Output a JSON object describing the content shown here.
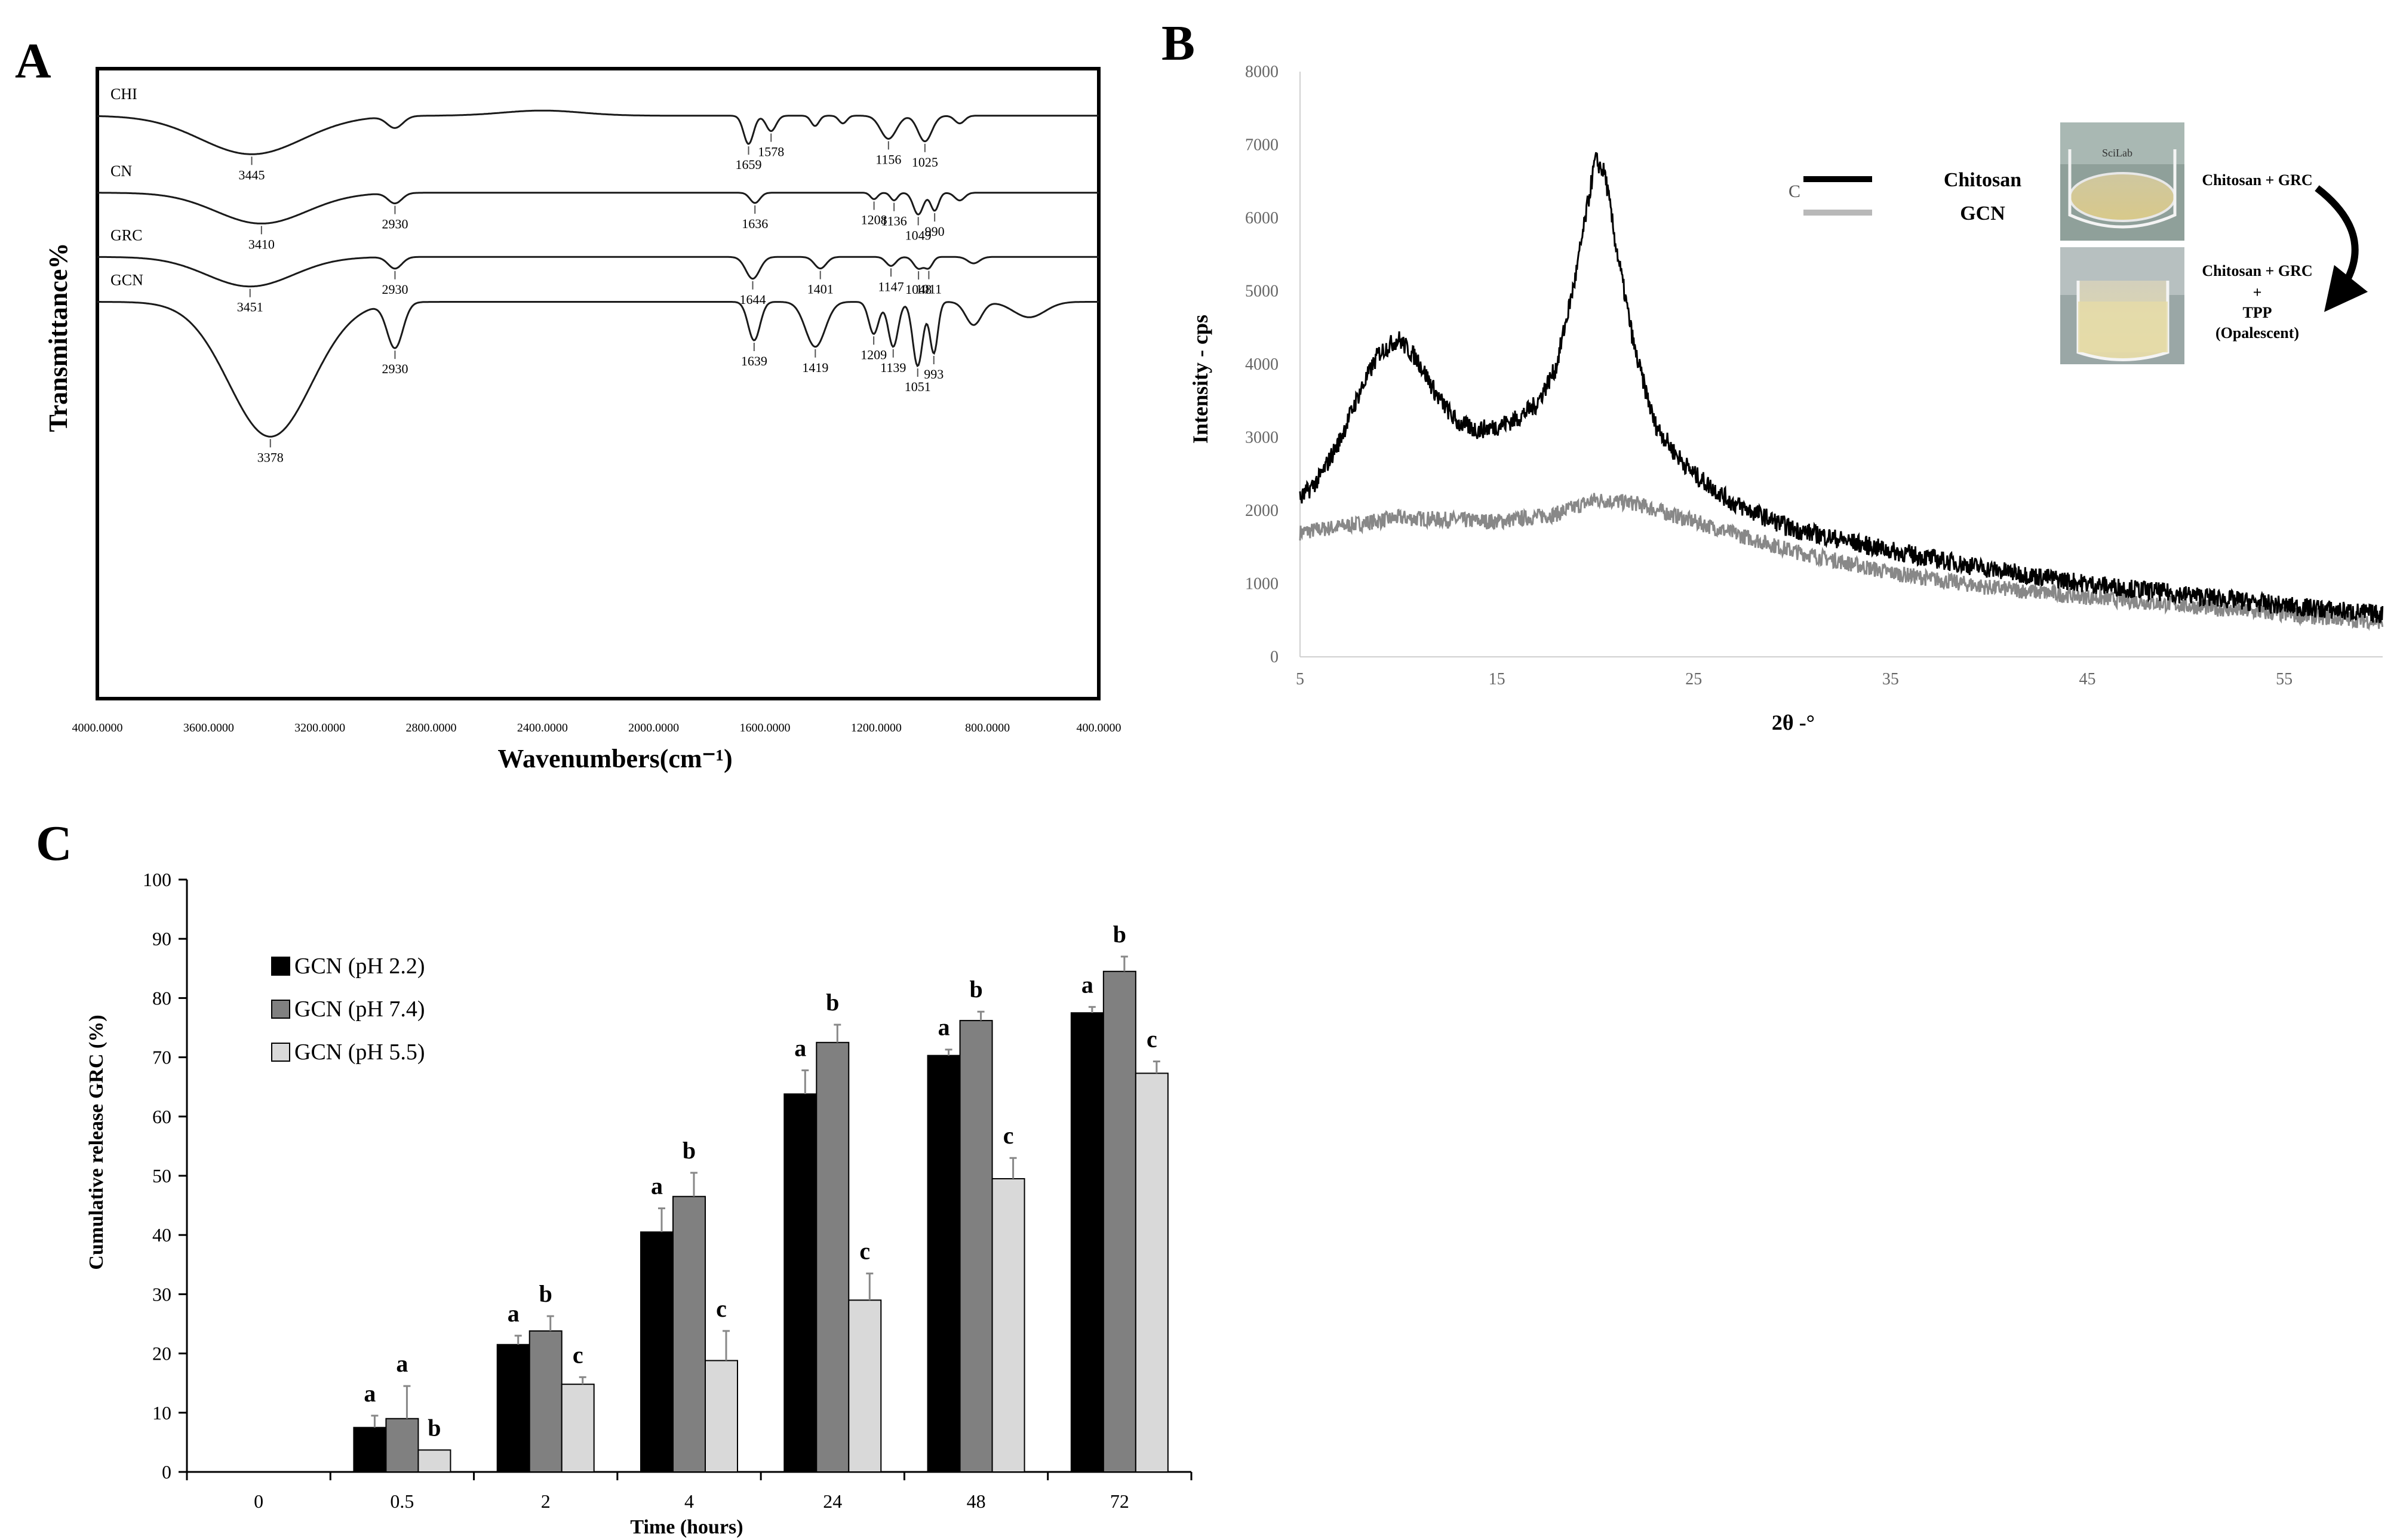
{
  "panels": {
    "A": "A",
    "B": "B",
    "C": "C"
  },
  "chart_data": [
    {
      "panel": "A",
      "type": "line",
      "title": "",
      "xlabel": "Wavenumbers(cm⁻¹)",
      "ylabel": "Transmittance%",
      "xlim": [
        4000,
        400
      ],
      "x_ticks": [
        4000,
        3600,
        3200,
        2800,
        2400,
        2000,
        1600,
        1200,
        800,
        400
      ],
      "x_tick_labels": [
        "4000.0000",
        "3600.0000",
        "3200.0000",
        "2800.0000",
        "2400.0000",
        "2000.0000",
        "1600.0000",
        "1200.0000",
        "800.0000",
        "400.0000"
      ],
      "series": [
        {
          "name": "CHI",
          "baseline": 2.5,
          "dips": [
            [
              3445,
              3.0,
              260
            ],
            [
              2930,
              0.9,
              40
            ],
            [
              2400,
              -0.4,
              200
            ],
            [
              1659,
              2.2,
              25
            ],
            [
              1578,
              1.2,
              25
            ],
            [
              1420,
              0.8,
              20
            ],
            [
              1320,
              0.6,
              20
            ],
            [
              1156,
              1.8,
              40
            ],
            [
              1025,
              2.0,
              35
            ],
            [
              900,
              0.6,
              25
            ]
          ],
          "peaks": [
            {
              "x": 3445,
              "label": "3445"
            },
            {
              "x": 1659,
              "label": "1659"
            },
            {
              "x": 1578,
              "label": "1578"
            },
            {
              "x": 1156,
              "label": "1156"
            },
            {
              "x": 1025,
              "label": "1025"
            }
          ]
        },
        {
          "name": "CN",
          "baseline": 8.5,
          "dips": [
            [
              3410,
              2.4,
              230
            ],
            [
              2930,
              0.8,
              35
            ],
            [
              1636,
              0.8,
              25
            ],
            [
              1208,
              0.5,
              18
            ],
            [
              1136,
              0.6,
              18
            ],
            [
              1049,
              1.7,
              25
            ],
            [
              990,
              1.4,
              20
            ],
            [
              900,
              0.6,
              25
            ]
          ],
          "peaks": [
            {
              "x": 3410,
              "label": "3410"
            },
            {
              "x": 2930,
              "label": "2930"
            },
            {
              "x": 1636,
              "label": "1636"
            },
            {
              "x": 1208,
              "label": "1208"
            },
            {
              "x": 1136,
              "label": "1136"
            },
            {
              "x": 1049,
              "label": "1049"
            },
            {
              "x": 990,
              "label": "990"
            }
          ]
        },
        {
          "name": "GRC",
          "baseline": 13.5,
          "dips": [
            [
              3451,
              2.3,
              220
            ],
            [
              2930,
              0.9,
              35
            ],
            [
              1644,
              1.7,
              35
            ],
            [
              1401,
              0.9,
              30
            ],
            [
              1147,
              0.7,
              25
            ],
            [
              1048,
              0.9,
              25
            ],
            [
              1011,
              0.8,
              20
            ],
            [
              850,
              0.5,
              30
            ]
          ],
          "peaks": [
            {
              "x": 3451,
              "label": "3451"
            },
            {
              "x": 2930,
              "label": "2930"
            },
            {
              "x": 1644,
              "label": "1644"
            },
            {
              "x": 1401,
              "label": "1401"
            },
            {
              "x": 1147,
              "label": "1147"
            },
            {
              "x": 1048,
              "label": "1048"
            },
            {
              "x": 1011,
              "label": "1011"
            }
          ]
        },
        {
          "name": "GCN",
          "baseline": 17.0,
          "dips": [
            [
              3378,
              10.5,
              210
            ],
            [
              2930,
              3.5,
              40
            ],
            [
              1639,
              3.0,
              30
            ],
            [
              1419,
              3.5,
              50
            ],
            [
              1209,
              2.5,
              25
            ],
            [
              1139,
              3.5,
              25
            ],
            [
              1051,
              5.0,
              25
            ],
            [
              993,
              4.0,
              20
            ],
            [
              850,
              1.8,
              40
            ],
            [
              650,
              1.2,
              80
            ]
          ],
          "peaks": [
            {
              "x": 3378,
              "label": "3378"
            },
            {
              "x": 2930,
              "label": "2930"
            },
            {
              "x": 1639,
              "label": "1639"
            },
            {
              "x": 1419,
              "label": "1419"
            },
            {
              "x": 1209,
              "label": "1209"
            },
            {
              "x": 1139,
              "label": "1139"
            },
            {
              "x": 1051,
              "label": "1051"
            },
            {
              "x": 993,
              "label": "993"
            }
          ]
        }
      ]
    },
    {
      "panel": "B",
      "type": "line",
      "title": "",
      "xlabel": "2θ -°",
      "ylabel": "Intensity - cps",
      "xlim": [
        5,
        60
      ],
      "ylim": [
        0,
        8000
      ],
      "x_ticks": [
        5,
        15,
        25,
        35,
        45,
        55
      ],
      "y_ticks": [
        0,
        1000,
        2000,
        3000,
        4000,
        5000,
        6000,
        7000,
        8000
      ],
      "series": [
        {
          "name": "Chitosan",
          "color": "#000000",
          "points": [
            [
              5,
              2150
            ],
            [
              6,
              2450
            ],
            [
              7,
              2950
            ],
            [
              8,
              3600
            ],
            [
              9,
              4150
            ],
            [
              10,
              4350
            ],
            [
              11,
              4050
            ],
            [
              12,
              3550
            ],
            [
              13,
              3200
            ],
            [
              14,
              3100
            ],
            [
              15,
              3150
            ],
            [
              16,
              3250
            ],
            [
              17,
              3450
            ],
            [
              18,
              3950
            ],
            [
              19,
              5200
            ],
            [
              20,
              6800
            ],
            [
              20.5,
              6600
            ],
            [
              21,
              5700
            ],
            [
              22,
              4200
            ],
            [
              23,
              3200
            ],
            [
              24,
              2800
            ],
            [
              25,
              2500
            ],
            [
              27,
              2100
            ],
            [
              30,
              1750
            ],
            [
              35,
              1450
            ],
            [
              40,
              1200
            ],
            [
              45,
              1000
            ],
            [
              50,
              850
            ],
            [
              55,
              700
            ],
            [
              60,
              580
            ]
          ]
        },
        {
          "name": "GCN",
          "color": "#888888",
          "points": [
            [
              5,
              1700
            ],
            [
              10,
              1900
            ],
            [
              15,
              1850
            ],
            [
              18,
              1950
            ],
            [
              20,
              2150
            ],
            [
              22,
              2100
            ],
            [
              25,
              1850
            ],
            [
              30,
              1450
            ],
            [
              35,
              1150
            ],
            [
              40,
              950
            ],
            [
              45,
              820
            ],
            [
              50,
              700
            ],
            [
              55,
              580
            ],
            [
              60,
              480
            ]
          ]
        }
      ],
      "inset": {
        "top_label": "Chitosan + GRC",
        "bottom_label_lines": [
          "Chitosan + GRC",
          "+",
          "TPP",
          "(Opalescent)"
        ],
        "legend_stub": "C",
        "beaker_text": "SciLab"
      }
    },
    {
      "panel": "C",
      "type": "bar",
      "title": "",
      "xlabel": "Time (hours)",
      "ylabel": "Cumulative release GRC (%)",
      "ylim": [
        0,
        100
      ],
      "y_ticks": [
        0,
        10,
        20,
        30,
        40,
        50,
        60,
        70,
        80,
        90,
        100
      ],
      "categories": [
        "0",
        "0.5",
        "2",
        "4",
        "24",
        "48",
        "72"
      ],
      "series": [
        {
          "name": "GCN (pH 2.2)",
          "color": "#000000",
          "values": [
            0,
            7.5,
            21.5,
            40.5,
            63.8,
            70.3,
            77.5
          ],
          "errors": [
            0,
            2.0,
            1.5,
            4.0,
            4.0,
            1.0,
            1.0
          ],
          "letters": [
            "",
            "a",
            "a",
            "a",
            "a",
            "a",
            "a"
          ]
        },
        {
          "name": "GCN (pH 7.4)",
          "color": "#808080",
          "values": [
            0,
            9.0,
            23.8,
            46.5,
            72.5,
            76.2,
            84.5
          ],
          "errors": [
            0,
            5.5,
            2.5,
            4.0,
            3.0,
            1.5,
            2.5
          ],
          "letters": [
            "",
            "a",
            "b",
            "b",
            "b",
            "b",
            "b"
          ]
        },
        {
          "name": "GCN (pH 5.5)",
          "color": "#d9d9d9",
          "values": [
            0,
            3.7,
            14.8,
            18.8,
            29.0,
            49.5,
            67.3
          ],
          "errors": [
            0,
            0,
            1.2,
            5.0,
            4.5,
            3.5,
            2.0
          ],
          "letters": [
            "",
            "b",
            "c",
            "c",
            "c",
            "c",
            "c"
          ]
        }
      ]
    }
  ]
}
